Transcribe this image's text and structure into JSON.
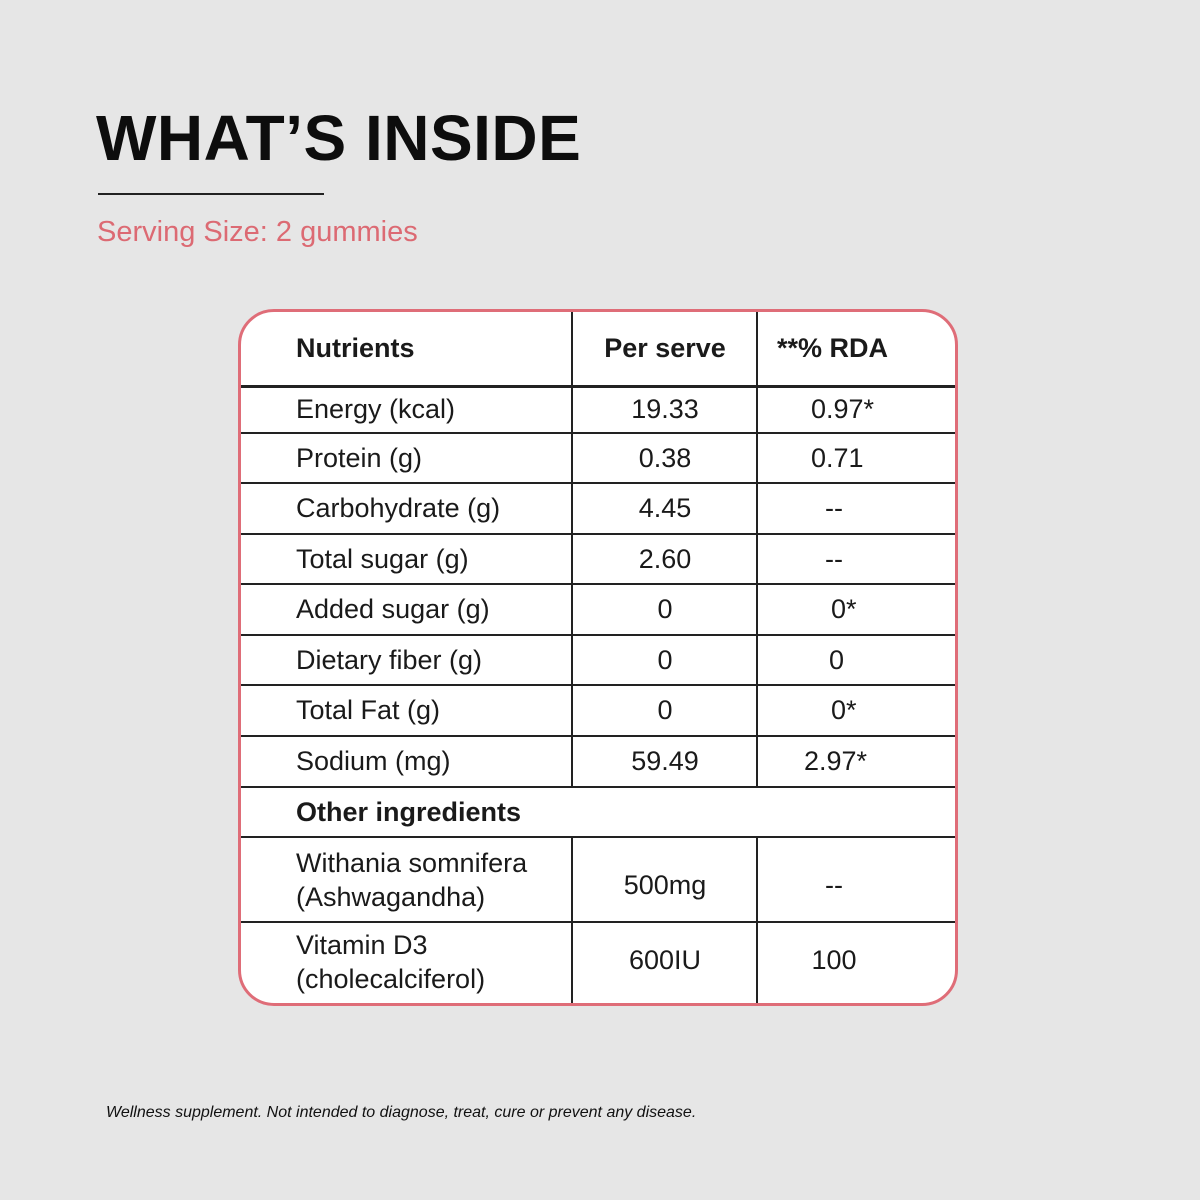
{
  "header": {
    "title": "WHAT’S INSIDE",
    "serving": "Serving Size: 2 gummies"
  },
  "table": {
    "headers": [
      "Nutrients",
      "Per serve",
      "**% RDA"
    ],
    "rows": [
      {
        "nutrient": "Energy (kcal)",
        "per_serve": "19.33",
        "rda": "0.97*"
      },
      {
        "nutrient": "Protein (g)",
        "per_serve": "0.38",
        "rda": "0.71"
      },
      {
        "nutrient": "Carbohydrate (g)",
        "per_serve": "4.45",
        "rda": "--"
      },
      {
        "nutrient": "Total sugar (g)",
        "per_serve": "2.60",
        "rda": "--"
      },
      {
        "nutrient": "Added sugar (g)",
        "per_serve": "0",
        "rda": "0*"
      },
      {
        "nutrient": "Dietary fiber (g)",
        "per_serve": "0",
        "rda": "0"
      },
      {
        "nutrient": "Total Fat (g)",
        "per_serve": "0",
        "rda": "0*"
      },
      {
        "nutrient": "Sodium (mg)",
        "per_serve": "59.49",
        "rda": "2.97*"
      }
    ],
    "other_heading": "Other ingredients",
    "other_rows": [
      {
        "line1": "Withania somnifera",
        "line2": "(Ashwagandha)",
        "per_serve": "500mg",
        "rda": "--"
      },
      {
        "line1": "Vitamin D3",
        "line2": "(cholecalciferol)",
        "per_serve": "600IU",
        "rda": "100"
      }
    ]
  },
  "footer": {
    "disclaimer": "Wellness supplement. Not intended to diagnose, treat, cure or prevent any disease."
  },
  "colors": {
    "background": "#e6e6e6",
    "accent": "#dc6a73",
    "card_border": "#df6d78"
  }
}
